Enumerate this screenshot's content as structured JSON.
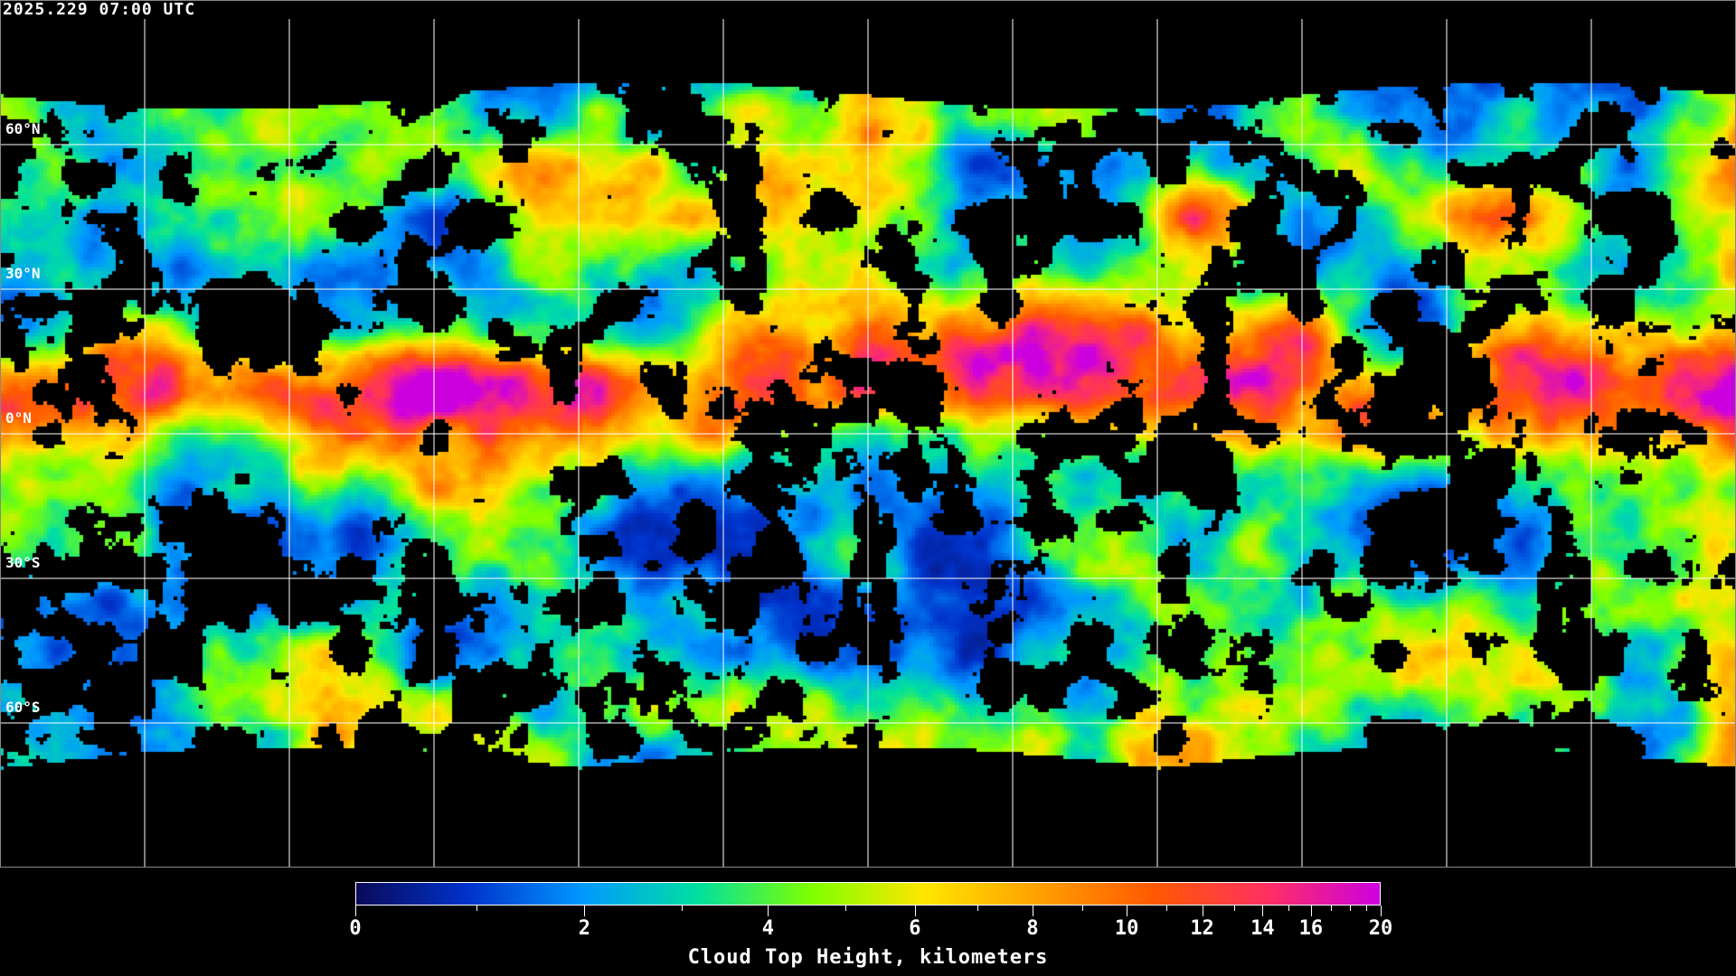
{
  "header": {
    "timestamp": "2025.229 07:00 UTC"
  },
  "map": {
    "projection": "equirectangular",
    "gridlines": {
      "longitude_step_deg": 30,
      "latitude_step_deg": 30,
      "color": "#ffffff"
    },
    "lat_labels": [
      "60°N",
      "30°N",
      "0°N",
      "30°S",
      "60°S"
    ],
    "coastline_color": "#ffffff",
    "clear_sky_color": "#000000"
  },
  "colorbar": {
    "title": "Cloud Top Height, kilometers",
    "min": 0,
    "max": 20,
    "major_ticks": [
      0,
      2,
      4,
      6,
      8,
      10,
      12,
      14,
      16,
      20
    ],
    "major_tick_labels": [
      "0",
      "2",
      "4",
      "6",
      "8",
      "10",
      "12",
      "14",
      "16",
      "20"
    ],
    "minor_ticks": [
      1,
      3,
      5,
      7,
      9,
      11,
      13,
      15,
      17,
      18,
      19
    ],
    "colors": [
      "#0a0a5a",
      "#0033cc",
      "#0099ff",
      "#00e0a0",
      "#80ff00",
      "#ffe600",
      "#ffa000",
      "#ff5a00",
      "#ff3060",
      "#cc00e0"
    ]
  }
}
